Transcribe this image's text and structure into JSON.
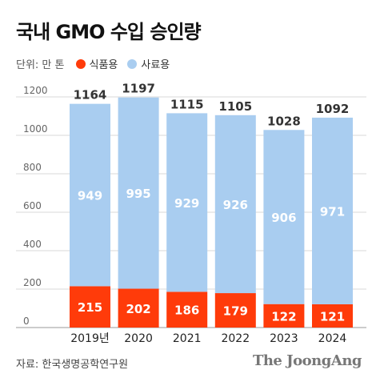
{
  "title": "국내 GMO 수입 승인량",
  "legend": {
    "unit": "단위: 만 톤",
    "items": [
      {
        "label": "식품용",
        "color": "#ff3b0a"
      },
      {
        "label": "사료용",
        "color": "#a9cdf0"
      }
    ]
  },
  "source": "자료: 한국생명공학연구원",
  "logo": "The JoongAng",
  "chart_data": {
    "type": "bar",
    "stacked": true,
    "categories": [
      "2019년",
      "2020",
      "2021",
      "2022",
      "2023",
      "2024"
    ],
    "series": [
      {
        "name": "식품용",
        "color": "#ff3b0a",
        "values": [
          215,
          202,
          186,
          179,
          122,
          121
        ]
      },
      {
        "name": "사료용",
        "color": "#a9cdf0",
        "values": [
          949,
          995,
          929,
          926,
          906,
          971
        ]
      }
    ],
    "totals": [
      1164,
      1197,
      1115,
      1105,
      1028,
      1092
    ],
    "ylim": [
      0,
      1200
    ],
    "yticks": [
      0,
      200,
      400,
      600,
      800,
      1000,
      1200
    ],
    "grid": true,
    "title": "국내 GMO 수입 승인량",
    "xlabel": "",
    "ylabel": ""
  }
}
